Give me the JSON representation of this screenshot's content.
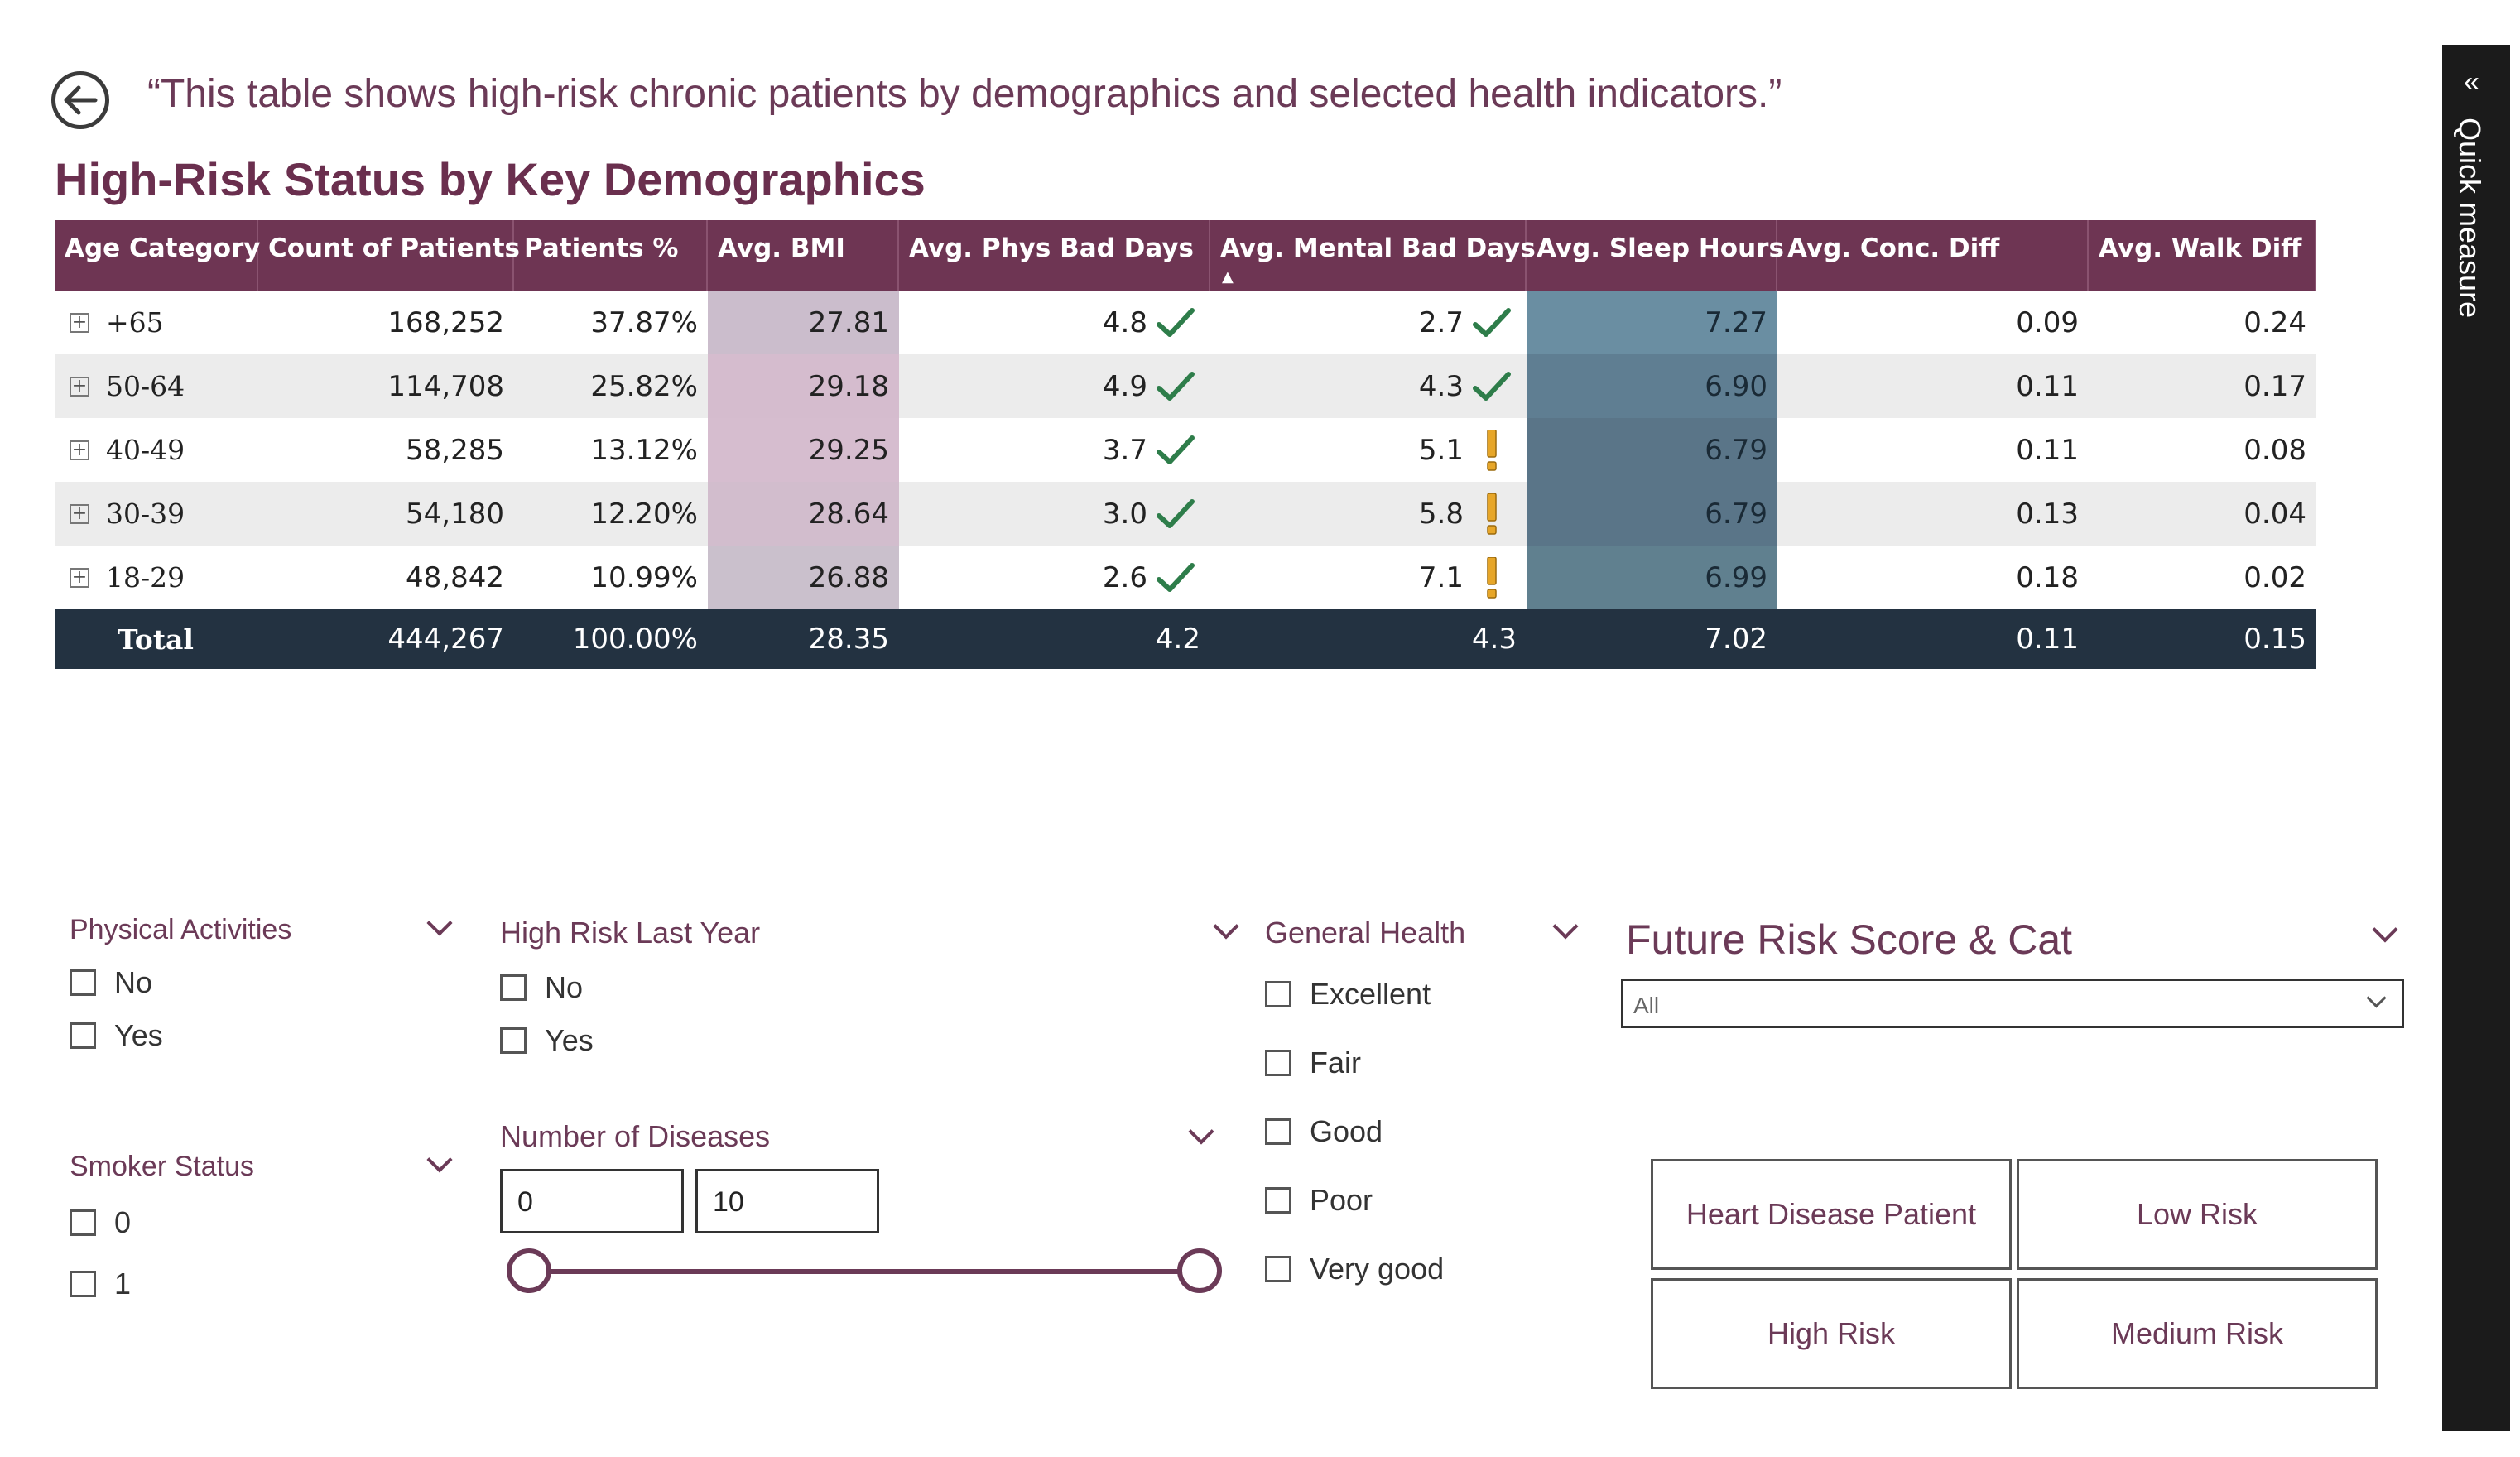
{
  "header": {
    "quote": "“This table shows high-risk chronic patients by demographics and selected health indicators.”",
    "title": "High-Risk Status by Key Demographics"
  },
  "table": {
    "columns": [
      "Age Category",
      "Count of Patients",
      "Patients %",
      "Avg. BMI",
      "Avg. Phys Bad Days",
      "Avg. Mental Bad Days",
      "Avg. Sleep Hours",
      "Avg. Conc. Diff",
      "Avg. Walk Diff"
    ],
    "rows": [
      {
        "age": "+65",
        "count": "168,252",
        "pct": "37.87%",
        "bmi": "27.81",
        "phys": "4.8",
        "phys_icon": "check",
        "mental": "2.7",
        "mental_icon": "check",
        "sleep": "7.27",
        "conc": "0.09",
        "walk": "0.24"
      },
      {
        "age": "50-64",
        "count": "114,708",
        "pct": "25.82%",
        "bmi": "29.18",
        "phys": "4.9",
        "phys_icon": "check",
        "mental": "4.3",
        "mental_icon": "check",
        "sleep": "6.90",
        "conc": "0.11",
        "walk": "0.17"
      },
      {
        "age": "40-49",
        "count": "58,285",
        "pct": "13.12%",
        "bmi": "29.25",
        "phys": "3.7",
        "phys_icon": "check",
        "mental": "5.1",
        "mental_icon": "warning",
        "sleep": "6.79",
        "conc": "0.11",
        "walk": "0.08"
      },
      {
        "age": "30-39",
        "count": "54,180",
        "pct": "12.20%",
        "bmi": "28.64",
        "phys": "3.0",
        "phys_icon": "check",
        "mental": "5.8",
        "mental_icon": "warning",
        "sleep": "6.79",
        "conc": "0.13",
        "walk": "0.04"
      },
      {
        "age": "18-29",
        "count": "48,842",
        "pct": "10.99%",
        "bmi": "26.88",
        "phys": "2.6",
        "phys_icon": "check",
        "mental": "7.1",
        "mental_icon": "warning",
        "sleep": "6.99",
        "conc": "0.18",
        "walk": "0.02"
      }
    ],
    "total": {
      "age": "Total",
      "count": "444,267",
      "pct": "100.00%",
      "bmi": "28.35",
      "phys": "4.2",
      "mental": "4.3",
      "sleep": "7.02",
      "conc": "0.11",
      "walk": "0.15"
    },
    "colors": {
      "bmi": [
        "#cbbdcc",
        "#d5bcce",
        "#d6bdcf",
        "#d2bdcd",
        "#cac0cc"
      ],
      "sleep": [
        "#6a8ea2",
        "#5f7e92",
        "#5a7588",
        "#5a7588",
        "#60808f"
      ]
    }
  },
  "slicers": {
    "physical": {
      "title": "Physical Activities",
      "options": [
        "No",
        "Yes"
      ]
    },
    "smoker": {
      "title": "Smoker Status",
      "options": [
        "0",
        "1"
      ]
    },
    "high_risk": {
      "title": "High Risk Last Year",
      "options": [
        "No",
        "Yes"
      ]
    },
    "diseases": {
      "title": "Number of Diseases",
      "min": "0",
      "max": "10"
    },
    "general": {
      "title": "General Health",
      "options": [
        "Excellent",
        "Fair",
        "Good",
        "Poor",
        "Very good"
      ]
    },
    "future": {
      "title": "Future Risk Score & Cat",
      "selected": "All"
    }
  },
  "buttons": [
    "Heart Disease Patient",
    "Low Risk",
    "High Risk",
    "Medium Risk"
  ],
  "quick_measure": {
    "label": "Quick measure"
  }
}
